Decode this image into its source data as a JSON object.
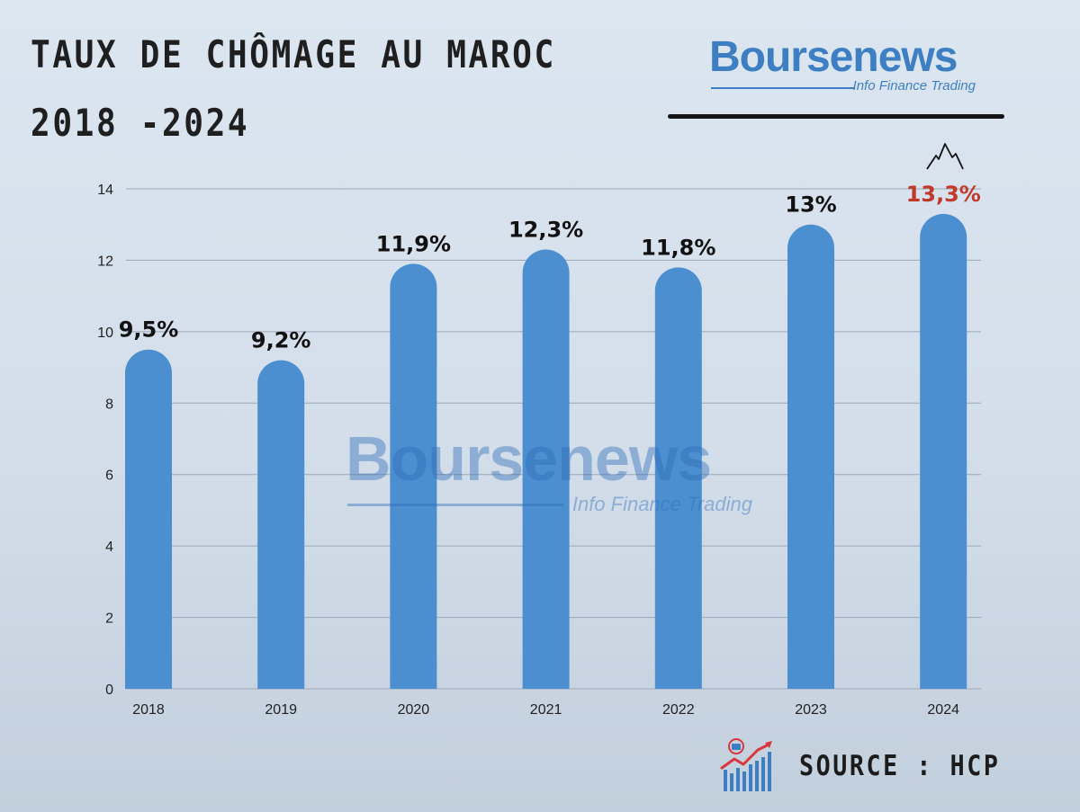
{
  "header": {
    "title_line1": "TAUX DE CHÔMAGE AU MAROC",
    "title_line2": "2018 -2024"
  },
  "logo": {
    "name": "Boursenews",
    "tagline": "Info Finance Trading"
  },
  "watermark": {
    "name": "Boursenews",
    "tagline": "Info Finance Trading"
  },
  "footer": {
    "source": "SOURCE : HCP",
    "icon": "growth-chart-icon"
  },
  "colors": {
    "bar": "#4b8fd0",
    "highlight_label": "#c0392b",
    "label": "#111111",
    "brand": "#3e7fc4"
  },
  "chart_data": {
    "type": "bar",
    "categories": [
      "2018",
      "2019",
      "2020",
      "2021",
      "2022",
      "2023",
      "2024"
    ],
    "values": [
      9.5,
      9.2,
      11.9,
      12.3,
      11.8,
      13,
      13.3
    ],
    "data_labels": [
      "9,5%",
      "9,2%",
      "11,9%",
      "12,3%",
      "11,8%",
      "13%",
      "13,3%"
    ],
    "highlight_index": 6,
    "peak_icon": "mountain-peak-icon",
    "ylim": [
      0,
      14
    ],
    "yticks": [
      0,
      2,
      4,
      6,
      8,
      10,
      12,
      14
    ],
    "grid": true,
    "title": "",
    "xlabel": "",
    "ylabel": ""
  }
}
